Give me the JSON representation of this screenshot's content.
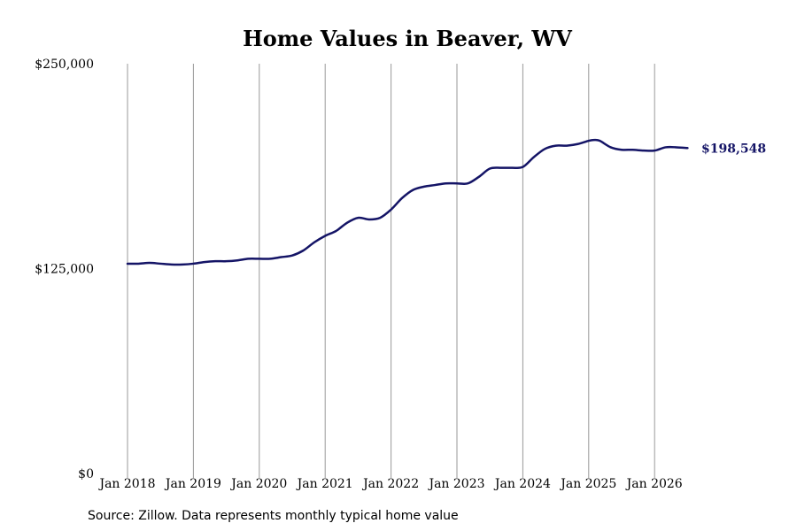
{
  "chart_data": {
    "type": "line",
    "title": "Home Values in Beaver, WV",
    "source": "Source: Zillow. Data represents monthly typical home value",
    "end_label": "$198,548",
    "line_color": "#141466",
    "grid_color": "#999999",
    "ylim": [
      0,
      250000
    ],
    "y_ticks": [
      {
        "value": 0,
        "label": "$0"
      },
      {
        "value": 125000,
        "label": "$125,000"
      },
      {
        "value": 250000,
        "label": "$250,000"
      }
    ],
    "x_ticks": [
      {
        "value": "2018-01",
        "label": "Jan 2018"
      },
      {
        "value": "2019-01",
        "label": "Jan 2019"
      },
      {
        "value": "2020-01",
        "label": "Jan 2020"
      },
      {
        "value": "2021-01",
        "label": "Jan 2021"
      },
      {
        "value": "2022-01",
        "label": "Jan 2022"
      },
      {
        "value": "2023-01",
        "label": "Jan 2023"
      },
      {
        "value": "2024-01",
        "label": "Jan 2024"
      },
      {
        "value": "2025-01",
        "label": "Jan 2025"
      },
      {
        "value": "2026-01",
        "label": "Jan 2026"
      }
    ],
    "series": [
      {
        "x": [
          "2018-01",
          "2018-03",
          "2018-05",
          "2018-07",
          "2018-09",
          "2018-11",
          "2019-01",
          "2019-03",
          "2019-05",
          "2019-07",
          "2019-09",
          "2019-11",
          "2020-01",
          "2020-03",
          "2020-05",
          "2020-07",
          "2020-09",
          "2020-11",
          "2021-01",
          "2021-03",
          "2021-05",
          "2021-07",
          "2021-09",
          "2021-11",
          "2022-01",
          "2022-03",
          "2022-05",
          "2022-07",
          "2022-09",
          "2022-11",
          "2023-01",
          "2023-03",
          "2023-05",
          "2023-07",
          "2023-09",
          "2023-11",
          "2024-01",
          "2024-03",
          "2024-05",
          "2024-07",
          "2024-09",
          "2024-11",
          "2025-01",
          "2025-02",
          "2025-03",
          "2025-05",
          "2025-07",
          "2025-09",
          "2025-11",
          "2026-01",
          "2026-03",
          "2026-05",
          "2026-07"
        ],
        "values": [
          128000,
          128000,
          128500,
          128000,
          127500,
          127500,
          128000,
          129000,
          129500,
          129500,
          130000,
          131000,
          131000,
          131000,
          132000,
          133000,
          136000,
          141000,
          145000,
          148000,
          153000,
          156000,
          155000,
          156000,
          161000,
          168000,
          173000,
          175000,
          176000,
          177000,
          177000,
          177000,
          181000,
          186000,
          186500,
          186500,
          187000,
          193000,
          198000,
          200000,
          200000,
          201000,
          203000,
          203500,
          203000,
          199000,
          197500,
          197500,
          197000,
          197000,
          199000,
          199000,
          198548
        ]
      }
    ]
  }
}
